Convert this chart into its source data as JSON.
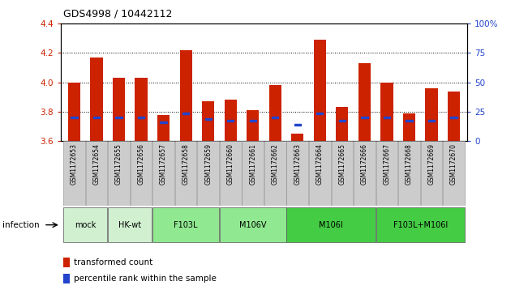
{
  "title": "GDS4998 / 10442112",
  "samples": [
    "GSM1172653",
    "GSM1172654",
    "GSM1172655",
    "GSM1172656",
    "GSM1172657",
    "GSM1172658",
    "GSM1172659",
    "GSM1172660",
    "GSM1172661",
    "GSM1172662",
    "GSM1172663",
    "GSM1172664",
    "GSM1172665",
    "GSM1172666",
    "GSM1172667",
    "GSM1172668",
    "GSM1172669",
    "GSM1172670"
  ],
  "bar_values": [
    4.0,
    4.17,
    4.03,
    4.03,
    3.78,
    4.22,
    3.87,
    3.88,
    3.81,
    3.98,
    3.65,
    4.29,
    3.83,
    4.13,
    4.0,
    3.79,
    3.96,
    3.94
  ],
  "blue_values": [
    3.76,
    3.76,
    3.76,
    3.76,
    3.73,
    3.79,
    3.75,
    3.74,
    3.74,
    3.76,
    3.71,
    3.79,
    3.74,
    3.76,
    3.76,
    3.74,
    3.74,
    3.76
  ],
  "groups": [
    {
      "label": "mock",
      "start": 0,
      "end": 2,
      "color": "#d0f0d0"
    },
    {
      "label": "HK-wt",
      "start": 2,
      "end": 4,
      "color": "#d0f0d0"
    },
    {
      "label": "F103L",
      "start": 4,
      "end": 7,
      "color": "#90e890"
    },
    {
      "label": "M106V",
      "start": 7,
      "end": 10,
      "color": "#90e890"
    },
    {
      "label": "M106I",
      "start": 10,
      "end": 14,
      "color": "#44cc44"
    },
    {
      "label": "F103L+M106I",
      "start": 14,
      "end": 18,
      "color": "#44cc44"
    }
  ],
  "ylim_left": [
    3.6,
    4.4
  ],
  "ylim_right": [
    0,
    100
  ],
  "yticks_left": [
    3.6,
    3.8,
    4.0,
    4.2,
    4.4
  ],
  "yticks_right": [
    0,
    25,
    50,
    75,
    100
  ],
  "bar_color": "#cc2200",
  "blue_color": "#2244cc",
  "bg_color": "#ffffff",
  "sample_bg": "#cccccc",
  "infection_label": "infection",
  "legend_transformed": "transformed count",
  "legend_percentile": "percentile rank within the sample",
  "grid_dotted_vals": [
    3.8,
    4.0,
    4.2
  ]
}
